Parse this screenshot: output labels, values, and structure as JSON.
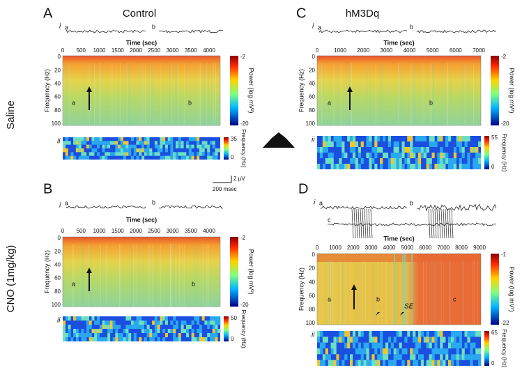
{
  "row_labels": [
    "Saline",
    "CNO (1mg/kg)"
  ],
  "scale_bar": {
    "voltage": "2 µV",
    "time": "200 msec"
  },
  "panels": [
    {
      "letter": "A",
      "title": "Control",
      "part_i": "i",
      "trace_labels": [
        "a",
        "b"
      ],
      "time_label": "Time (sec)",
      "time_ticks": [
        "0",
        "500",
        "1000",
        "1500",
        "2000",
        "2500",
        "3000",
        "3500",
        "4000"
      ],
      "freq_label": "Frequency (Hz)",
      "freq_ticks": [
        "0",
        "20",
        "40",
        "60",
        "80",
        "100"
      ],
      "markers": [
        "a",
        "b"
      ],
      "colorbar_label": "Power (log mV²)",
      "colorbar_ticks": [
        "-2",
        "-20"
      ],
      "part_ii": "ii",
      "ii_label": "Frequency (Hz)",
      "ii_ticks": [
        "35",
        "0"
      ]
    },
    {
      "letter": "B",
      "title": "",
      "part_i": "i",
      "trace_labels": [
        "a",
        "b"
      ],
      "time_label": "Time (sec)",
      "time_ticks": [
        "0",
        "500",
        "1000",
        "1500",
        "2000",
        "2500",
        "3000",
        "3500",
        "4000"
      ],
      "freq_label": "Frequency (Hz)",
      "freq_ticks": [
        "0",
        "20",
        "40",
        "60",
        "80",
        "100"
      ],
      "markers": [
        "a",
        "b"
      ],
      "colorbar_label": "Power (log mV²)",
      "colorbar_ticks": [
        "-2",
        "-20"
      ],
      "part_ii": "ii",
      "ii_label": "Frequency (Hz)",
      "ii_ticks": [
        "50",
        "0"
      ]
    },
    {
      "letter": "C",
      "title": "hM3Dq",
      "part_i": "i",
      "trace_labels": [
        "a",
        "b"
      ],
      "time_label": "Time (sec)",
      "time_ticks": [
        "0",
        "1000",
        "2000",
        "3000",
        "4000",
        "5000",
        "6000",
        "7000"
      ],
      "freq_label": "Frequency (Hz)",
      "freq_ticks": [
        "0",
        "20",
        "40",
        "60",
        "80",
        "100"
      ],
      "markers": [
        "a",
        "b"
      ],
      "colorbar_label": "Power (log mV²)",
      "colorbar_ticks": [
        "-2",
        "-20"
      ],
      "part_ii": "ii",
      "ii_label": "Frequency (Hz)",
      "ii_ticks": [
        "55",
        "0"
      ]
    },
    {
      "letter": "D",
      "title": "",
      "part_i": "i",
      "trace_labels": [
        "a",
        "b",
        "c"
      ],
      "time_label": "Time (sec)",
      "time_ticks": [
        "0",
        "1000",
        "2000",
        "3000",
        "4000",
        "5000",
        "6000",
        "7000",
        "8000",
        "9000"
      ],
      "freq_label": "Frequency (Hz)",
      "freq_ticks": [
        "0",
        "20",
        "40",
        "60",
        "80",
        "100"
      ],
      "markers": [
        "a",
        "b",
        "SE",
        "c"
      ],
      "colorbar_label": "Power (log mV²)",
      "colorbar_ticks": [
        "-1",
        "-22"
      ],
      "part_ii": "ii",
      "ii_label": "Frequency (Hz)",
      "ii_ticks": [
        "65",
        "0"
      ]
    }
  ]
}
